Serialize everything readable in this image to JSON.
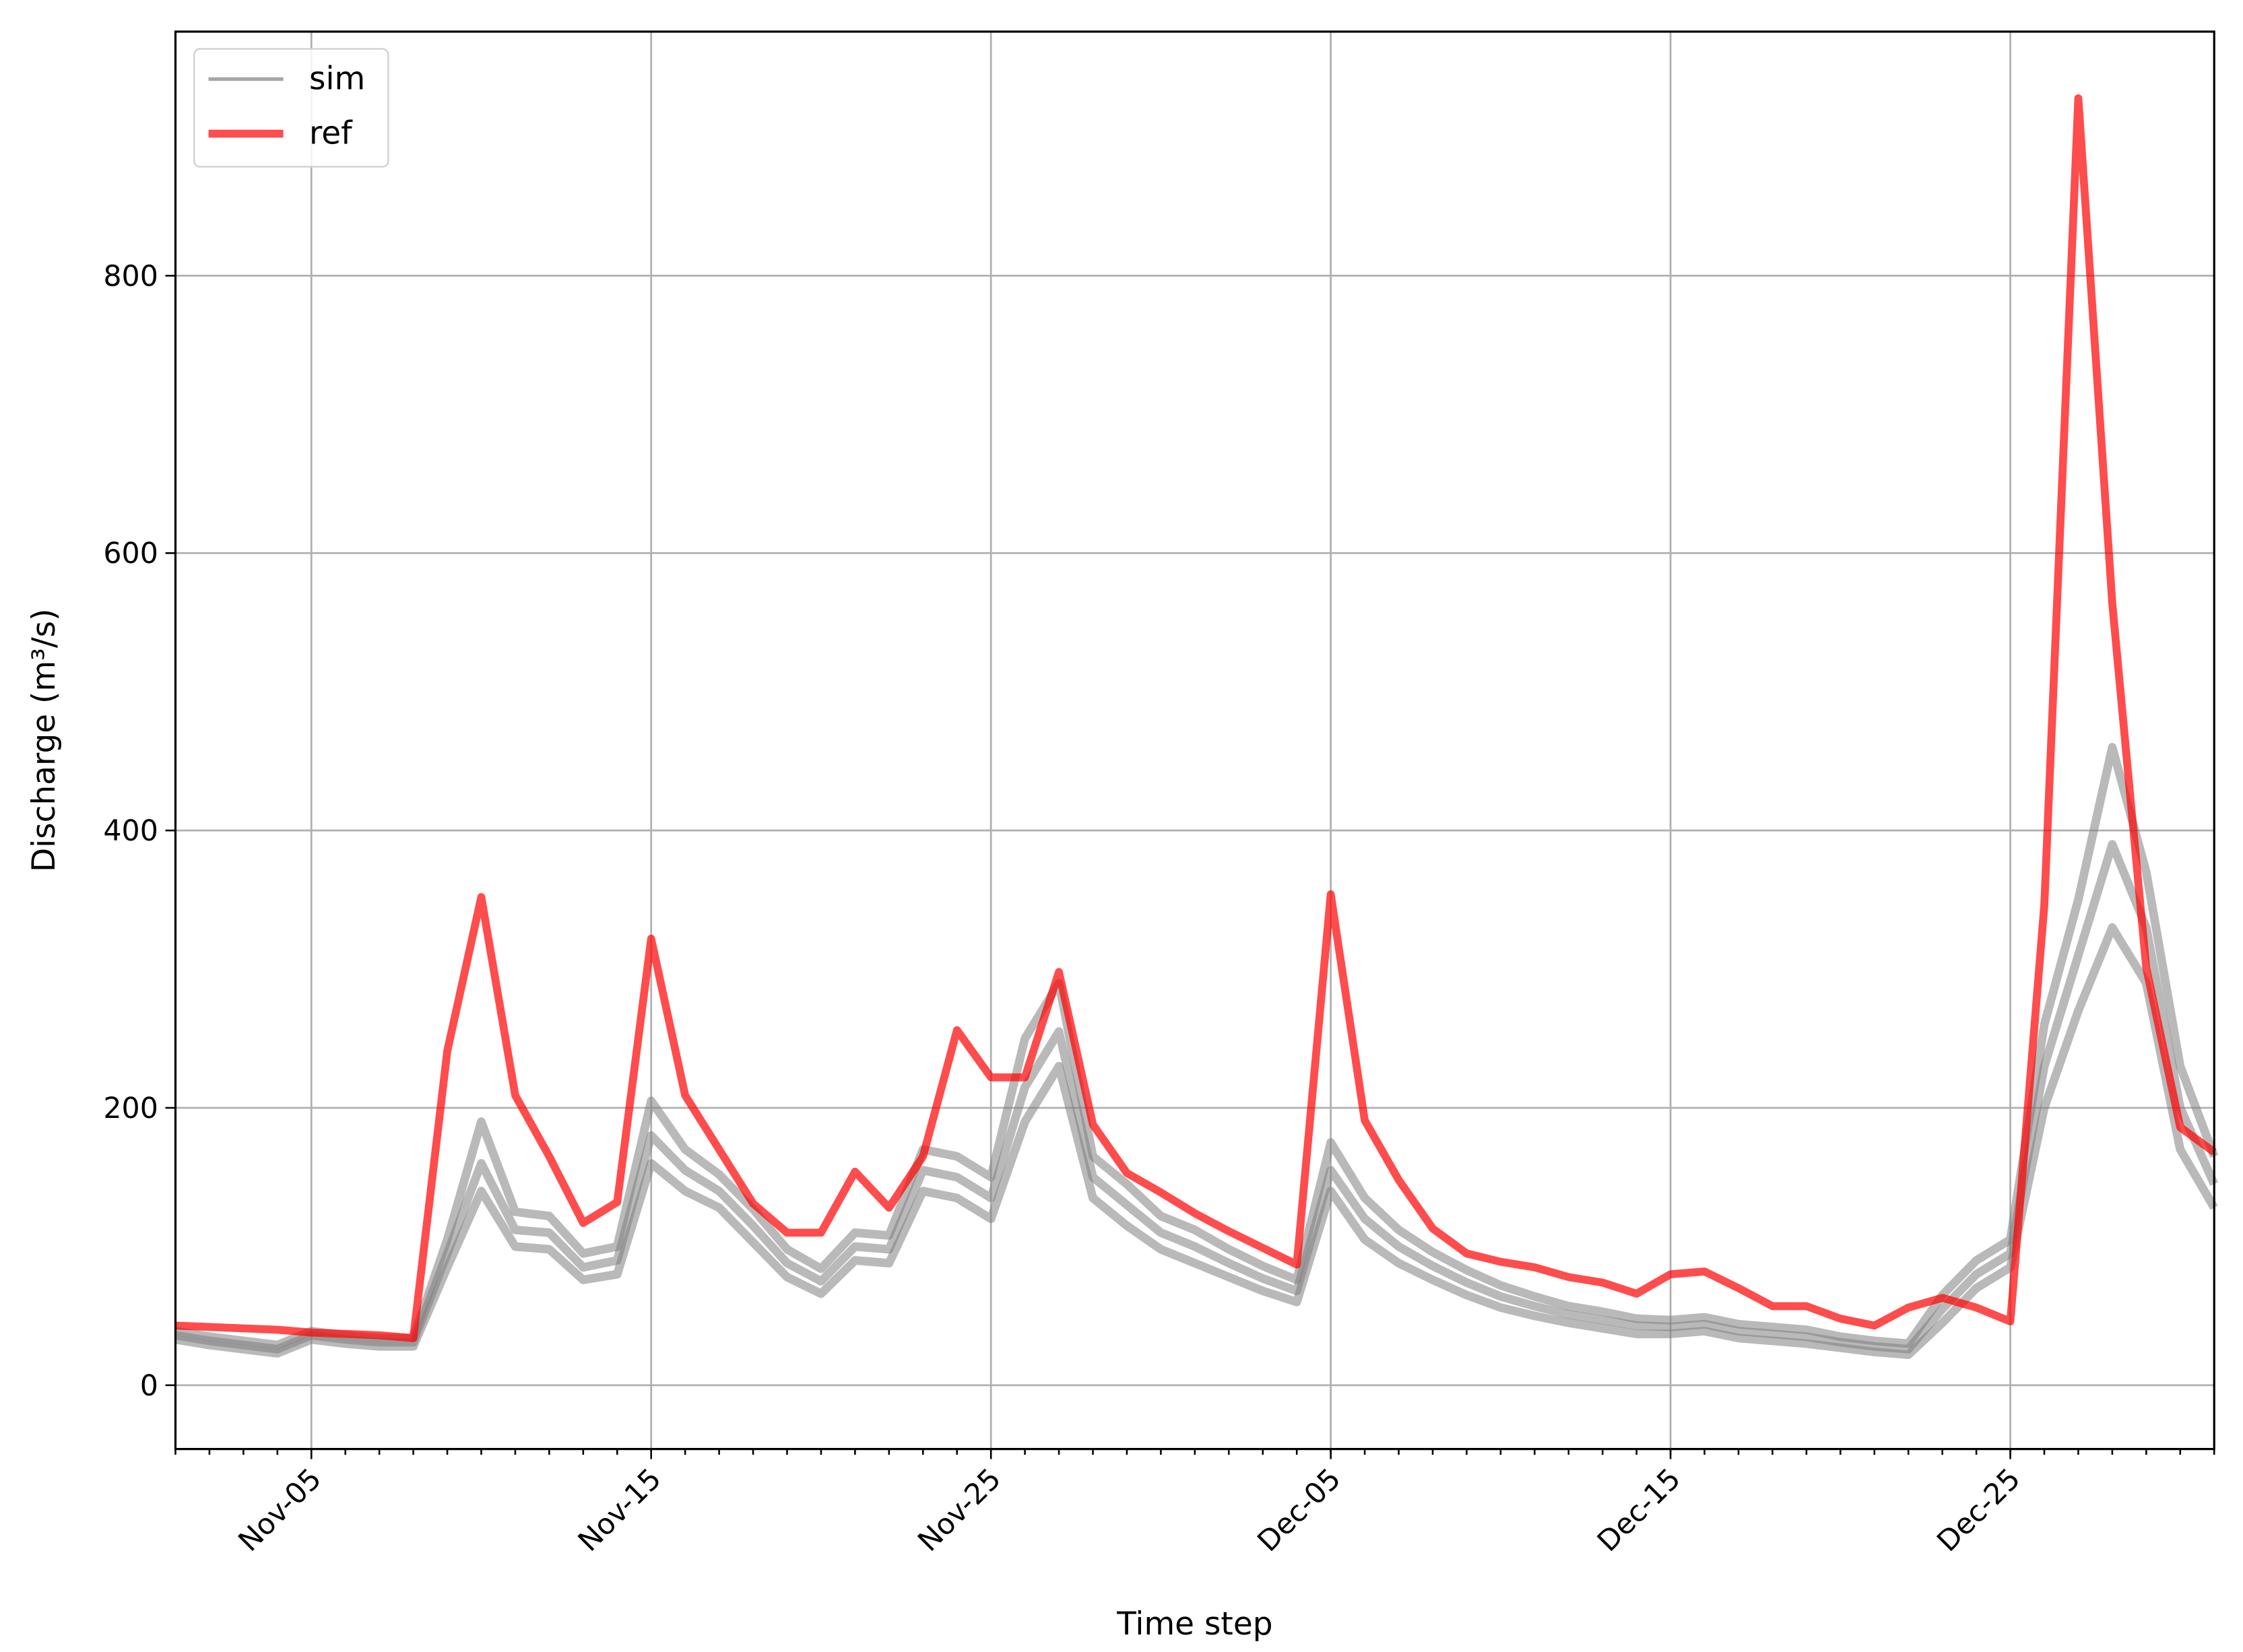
{
  "chart_data": {
    "type": "line",
    "xlabel": "Time step",
    "ylabel": "Discharge (m³/s)",
    "x": [
      "Nov-01",
      "Nov-02",
      "Nov-03",
      "Nov-04",
      "Nov-05",
      "Nov-06",
      "Nov-07",
      "Nov-08",
      "Nov-09",
      "Nov-10",
      "Nov-11",
      "Nov-12",
      "Nov-13",
      "Nov-14",
      "Nov-15",
      "Nov-16",
      "Nov-17",
      "Nov-18",
      "Nov-19",
      "Nov-20",
      "Nov-21",
      "Nov-22",
      "Nov-23",
      "Nov-24",
      "Nov-25",
      "Nov-26",
      "Nov-27",
      "Nov-28",
      "Nov-29",
      "Nov-30",
      "Dec-01",
      "Dec-02",
      "Dec-03",
      "Dec-04",
      "Dec-05",
      "Dec-06",
      "Dec-07",
      "Dec-08",
      "Dec-09",
      "Dec-10",
      "Dec-11",
      "Dec-12",
      "Dec-13",
      "Dec-14",
      "Dec-15",
      "Dec-16",
      "Dec-17",
      "Dec-18",
      "Dec-19",
      "Dec-20",
      "Dec-21",
      "Dec-22",
      "Dec-23",
      "Dec-24",
      "Dec-25",
      "Dec-26",
      "Dec-27",
      "Dec-28",
      "Dec-29",
      "Dec-30",
      "Dec-31"
    ],
    "xlim": [
      "Nov-01",
      "Dec-31"
    ],
    "xticks": [
      "Nov-05",
      "Nov-15",
      "Nov-25",
      "Dec-05",
      "Dec-15",
      "Dec-25"
    ],
    "ylim": [
      -46,
      976
    ],
    "yticks": [
      0,
      200,
      400,
      600,
      800
    ],
    "grid": true,
    "legend": "upper left",
    "series": [
      {
        "name": "sim",
        "color": "#808080",
        "values": [
          [
            33,
            29,
            26,
            23,
            33,
            30,
            28,
            28,
            85,
            140,
            100,
            98,
            76,
            80,
            160,
            140,
            128,
            103,
            78,
            66,
            90,
            88,
            140,
            135,
            120,
            190,
            230,
            135,
            115,
            98,
            88,
            78,
            68,
            60,
            140,
            105,
            88,
            76,
            65,
            56,
            50,
            45,
            41,
            37,
            37,
            39,
            34,
            32,
            30,
            27,
            24,
            22,
            45,
            70,
            85,
            200,
            270,
            330,
            290,
            170,
            128
          ],
          [
            36,
            32,
            29,
            26,
            36,
            33,
            31,
            31,
            95,
            160,
            112,
            110,
            85,
            90,
            180,
            155,
            140,
            115,
            88,
            75,
            100,
            98,
            155,
            150,
            135,
            215,
            255,
            150,
            130,
            110,
            100,
            88,
            77,
            68,
            155,
            120,
            100,
            86,
            74,
            64,
            57,
            51,
            47,
            43,
            42,
            44,
            39,
            37,
            35,
            31,
            28,
            26,
            55,
            80,
            95,
            230,
            310,
            390,
            330,
            200,
            145
          ],
          [
            39,
            35,
            32,
            29,
            39,
            36,
            34,
            34,
            105,
            190,
            125,
            122,
            95,
            100,
            205,
            170,
            152,
            127,
            98,
            84,
            110,
            108,
            170,
            165,
            150,
            250,
            290,
            165,
            145,
            122,
            112,
            98,
            86,
            76,
            175,
            135,
            112,
            96,
            83,
            72,
            64,
            57,
            53,
            48,
            47,
            49,
            44,
            42,
            40,
            35,
            32,
            30,
            65,
            90,
            105,
            260,
            350,
            460,
            370,
            230,
            165
          ]
        ]
      },
      {
        "name": "ref",
        "color": "#ff0000",
        "values": [
          43,
          42,
          41,
          40,
          38,
          37,
          36,
          34,
          241,
          352,
          209,
          165,
          117,
          132,
          322,
          209,
          170,
          131,
          110,
          110,
          154,
          128,
          165,
          256,
          222,
          222,
          298,
          188,
          153,
          139,
          124,
          111,
          99,
          87,
          354,
          191,
          148,
          113,
          95,
          89,
          85,
          78,
          74,
          66,
          80,
          82,
          70,
          57,
          57,
          48,
          43,
          56,
          63,
          56,
          46,
          346,
          928,
          564,
          301,
          186,
          168
        ]
      }
    ]
  }
}
